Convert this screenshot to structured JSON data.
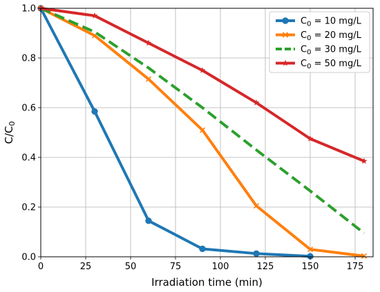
{
  "chart_data": {
    "type": "line",
    "title": "",
    "xlabel": "Irradiation time (min)",
    "ylabel": "C/C",
    "ylabel_subscript": "0",
    "xlim": [
      0,
      185
    ],
    "ylim": [
      0,
      1.0
    ],
    "xticks": [
      0,
      25,
      50,
      75,
      100,
      125,
      150,
      175
    ],
    "yticks": [
      0.0,
      0.2,
      0.4,
      0.6,
      0.8,
      1.0
    ],
    "xtick_labels": [
      "0",
      "25",
      "50",
      "75",
      "100",
      "125",
      "150",
      "175"
    ],
    "ytick_labels": [
      "0.0",
      "0.2",
      "0.4",
      "0.6",
      "0.8",
      "1.0"
    ],
    "grid": true,
    "legend_position": "top-right",
    "series": [
      {
        "name_prefix": "C",
        "name_subscript": "0",
        "name_suffix": " = 10 mg/L",
        "color": "#1f77b4",
        "style": "solid",
        "marker": "circle",
        "x": [
          0,
          30,
          60,
          90,
          120,
          150
        ],
        "y": [
          1.0,
          0.585,
          0.145,
          0.032,
          0.013,
          0.002
        ]
      },
      {
        "name_prefix": "C",
        "name_subscript": "0",
        "name_suffix": " = 20 mg/L",
        "color": "#ff7f0e",
        "style": "solid",
        "marker": "x",
        "x": [
          0,
          30,
          60,
          90,
          120,
          150,
          180
        ],
        "y": [
          1.0,
          0.89,
          0.715,
          0.51,
          0.205,
          0.03,
          0.003
        ]
      },
      {
        "name_prefix": "C",
        "name_subscript": "0",
        "name_suffix": " = 30 mg/L",
        "color": "#2ca02c",
        "style": "dashed",
        "marker": "none",
        "x": [
          0,
          30,
          60,
          90,
          120,
          150,
          180
        ],
        "y": [
          1.0,
          0.905,
          0.76,
          0.6,
          0.43,
          0.265,
          0.095
        ]
      },
      {
        "name_prefix": "C",
        "name_subscript": "0",
        "name_suffix": " = 50 mg/L",
        "color": "#d62728",
        "style": "solid",
        "marker": "star",
        "x": [
          0,
          30,
          60,
          90,
          120,
          150,
          180
        ],
        "y": [
          1.0,
          0.97,
          0.86,
          0.75,
          0.62,
          0.475,
          0.385
        ]
      }
    ]
  }
}
